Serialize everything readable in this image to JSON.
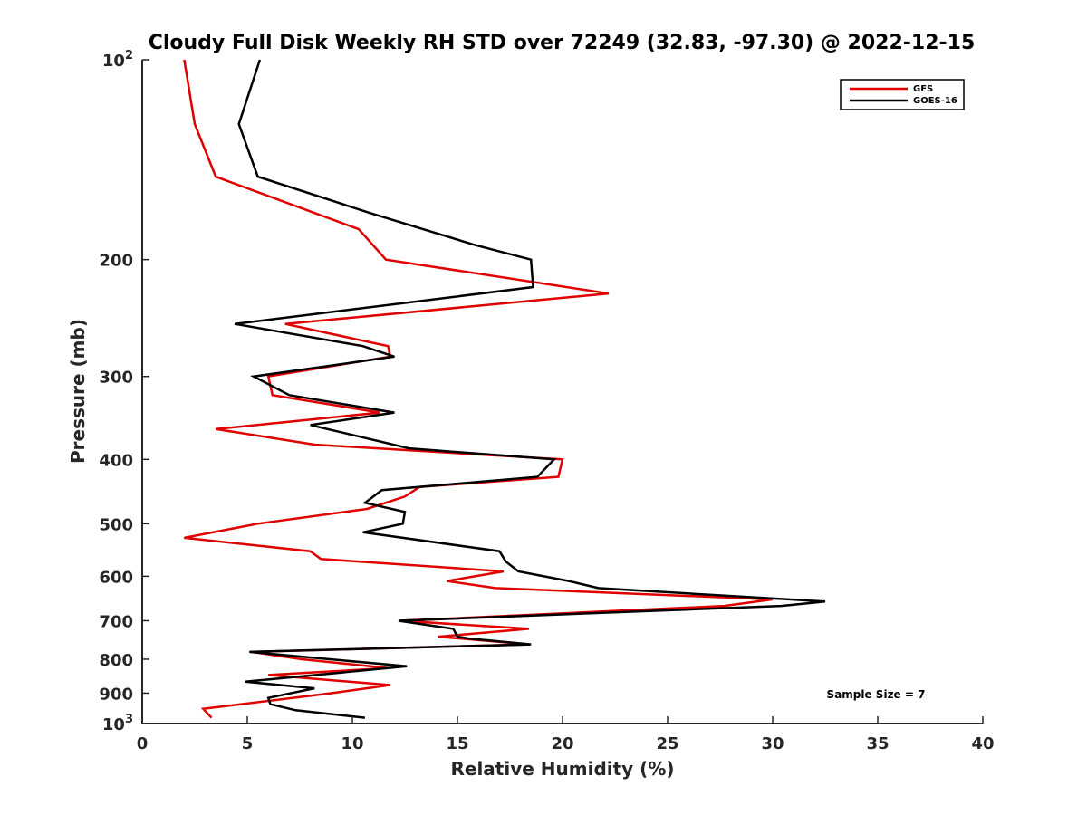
{
  "chart_data": {
    "type": "line",
    "title": "Cloudy Full Disk Weekly RH STD over 72249 (32.83, -97.30) @ 2022-12-15",
    "xlabel": "Relative Humidity (%)",
    "ylabel": "Pressure (mb)",
    "xlim": [
      0,
      40
    ],
    "ylim": [
      100,
      1000
    ],
    "y_scale": "log",
    "y_reversed": true,
    "x_ticks": [
      0,
      5,
      10,
      15,
      20,
      25,
      30,
      35,
      40
    ],
    "y_ticks": [
      {
        "value": 100,
        "base": "10",
        "exp": "2"
      },
      {
        "value": 200,
        "label": "200"
      },
      {
        "value": 300,
        "label": "300"
      },
      {
        "value": 400,
        "label": "400"
      },
      {
        "value": 500,
        "label": "500"
      },
      {
        "value": 600,
        "label": "600"
      },
      {
        "value": 700,
        "label": "700"
      },
      {
        "value": 800,
        "label": "800"
      },
      {
        "value": 900,
        "label": "900"
      },
      {
        "value": 1000,
        "base": "10",
        "exp": "3"
      }
    ],
    "grid": false,
    "legend_position": "top-right",
    "annotation": "Sample Size = 7",
    "series": [
      {
        "name": "GFS",
        "color": "#e00000",
        "points": [
          [
            2.0,
            100
          ],
          [
            2.5,
            125
          ],
          [
            3.5,
            150
          ],
          [
            10.3,
            180
          ],
          [
            11.6,
            200
          ],
          [
            22.2,
            225
          ],
          [
            6.8,
            250
          ],
          [
            11.7,
            270
          ],
          [
            11.8,
            280
          ],
          [
            6.0,
            300
          ],
          [
            6.2,
            320
          ],
          [
            11.3,
            340
          ],
          [
            3.5,
            360
          ],
          [
            8.2,
            380
          ],
          [
            20.0,
            400
          ],
          [
            19.8,
            425
          ],
          [
            13.2,
            440
          ],
          [
            12.5,
            455
          ],
          [
            10.7,
            475
          ],
          [
            5.5,
            500
          ],
          [
            2.0,
            525
          ],
          [
            8.0,
            550
          ],
          [
            8.5,
            565
          ],
          [
            17.2,
            590
          ],
          [
            14.5,
            610
          ],
          [
            16.8,
            625
          ],
          [
            30.0,
            650
          ],
          [
            27.7,
            665
          ],
          [
            12.3,
            700
          ],
          [
            18.4,
            720
          ],
          [
            14.1,
            740
          ],
          [
            18.4,
            760
          ],
          [
            5.2,
            780
          ],
          [
            7.6,
            800
          ],
          [
            11.7,
            825
          ],
          [
            6.0,
            845
          ],
          [
            11.8,
            875
          ],
          [
            9.0,
            900
          ],
          [
            2.9,
            950
          ],
          [
            3.3,
            980
          ]
        ]
      },
      {
        "name": "GOES-16",
        "color": "#000000",
        "points": [
          [
            5.6,
            100
          ],
          [
            4.6,
            125
          ],
          [
            5.5,
            150
          ],
          [
            10.8,
            170
          ],
          [
            15.8,
            190
          ],
          [
            18.5,
            200
          ],
          [
            18.6,
            220
          ],
          [
            4.4,
            250
          ],
          [
            10.5,
            270
          ],
          [
            12.0,
            280
          ],
          [
            5.3,
            300
          ],
          [
            7.0,
            320
          ],
          [
            12.0,
            340
          ],
          [
            8.0,
            355
          ],
          [
            12.7,
            385
          ],
          [
            19.6,
            400
          ],
          [
            18.8,
            425
          ],
          [
            11.4,
            445
          ],
          [
            10.6,
            465
          ],
          [
            12.5,
            480
          ],
          [
            12.4,
            500
          ],
          [
            10.5,
            515
          ],
          [
            17.0,
            550
          ],
          [
            17.3,
            570
          ],
          [
            17.9,
            590
          ],
          [
            20.3,
            610
          ],
          [
            21.7,
            625
          ],
          [
            32.5,
            655
          ],
          [
            30.4,
            665
          ],
          [
            12.2,
            700
          ],
          [
            14.8,
            720
          ],
          [
            15.0,
            740
          ],
          [
            15.6,
            745
          ],
          [
            18.5,
            760
          ],
          [
            5.1,
            780
          ],
          [
            12.6,
            820
          ],
          [
            4.9,
            865
          ],
          [
            8.2,
            885
          ],
          [
            6.0,
            915
          ],
          [
            6.1,
            935
          ],
          [
            7.3,
            955
          ],
          [
            10.6,
            980
          ]
        ]
      }
    ]
  }
}
